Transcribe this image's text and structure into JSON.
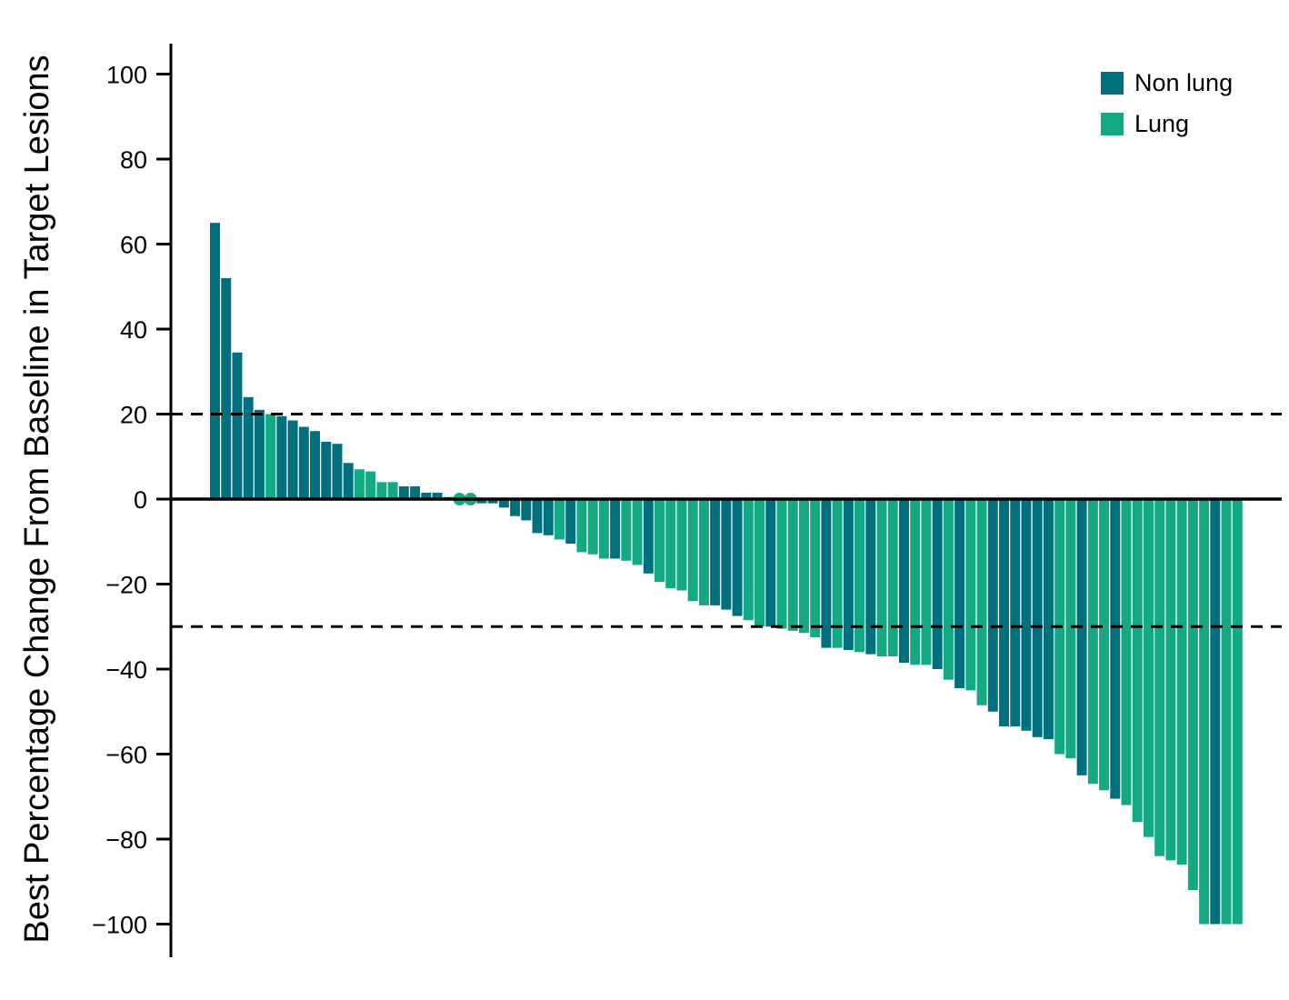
{
  "chart_data": {
    "type": "bar",
    "title": "",
    "xlabel": "",
    "ylabel": "Best Percentage Change From Baseline in Target Lesions",
    "ylim": [
      -107,
      107
    ],
    "yticks": [
      100,
      80,
      60,
      40,
      20,
      0,
      -20,
      -40,
      -60,
      -80,
      -100
    ],
    "ytick_labels": [
      "100",
      "80",
      "60",
      "40",
      "20",
      "0",
      "−20",
      "−40",
      "−60",
      "−80",
      "−100"
    ],
    "reference_lines": [
      20,
      -30
    ],
    "grid": false,
    "legend_position": "top-right",
    "series": [
      {
        "name": "Non lung",
        "color": "#00707f"
      },
      {
        "name": "Lung",
        "color": "#13aa83"
      }
    ],
    "values": [
      65,
      52,
      34.5,
      24,
      21,
      20,
      19.5,
      18.5,
      17,
      16,
      13.5,
      13,
      8.5,
      7,
      6.5,
      4,
      4,
      3,
      3,
      1.5,
      1.5,
      0.5,
      0,
      0,
      -1,
      -1,
      -2,
      -4,
      -5,
      -8,
      -8.5,
      -9.5,
      -10.5,
      -12.5,
      -13,
      -14,
      -14,
      -14.5,
      -15.5,
      -17.5,
      -19.5,
      -21,
      -21.5,
      -24,
      -25,
      -25,
      -26,
      -27.5,
      -28.5,
      -30,
      -30,
      -30.5,
      -31,
      -31.5,
      -32.5,
      -35,
      -35,
      -35.5,
      -36,
      -36.5,
      -37,
      -37,
      -38.5,
      -39,
      -39,
      -40,
      -42.5,
      -44.5,
      -45,
      -48.5,
      -50,
      -53.5,
      -53.5,
      -54.5,
      -56,
      -56.5,
      -60,
      -61,
      -65,
      -67,
      -68.5,
      -70.5,
      -72,
      -76,
      -79.5,
      -84,
      -85,
      -86,
      -92,
      -100,
      -100,
      -100,
      -100
    ],
    "groups": [
      "Non lung",
      "Non lung",
      "Non lung",
      "Non lung",
      "Non lung",
      "Lung",
      "Non lung",
      "Non lung",
      "Non lung",
      "Non lung",
      "Non lung",
      "Non lung",
      "Non lung",
      "Lung",
      "Lung",
      "Lung",
      "Lung",
      "Non lung",
      "Non lung",
      "Non lung",
      "Non lung",
      "Lung",
      "Lung",
      "Lung",
      "Non lung",
      "Non lung",
      "Non lung",
      "Non lung",
      "Non lung",
      "Non lung",
      "Non lung",
      "Lung",
      "Non lung",
      "Lung",
      "Lung",
      "Lung",
      "Non lung",
      "Lung",
      "Lung",
      "Non lung",
      "Lung",
      "Lung",
      "Lung",
      "Lung",
      "Lung",
      "Non lung",
      "Non lung",
      "Non lung",
      "Lung",
      "Lung",
      "Non lung",
      "Lung",
      "Lung",
      "Lung",
      "Lung",
      "Non lung",
      "Lung",
      "Non lung",
      "Lung",
      "Non lung",
      "Lung",
      "Lung",
      "Non lung",
      "Lung",
      "Lung",
      "Non lung",
      "Lung",
      "Non lung",
      "Lung",
      "Lung",
      "Non lung",
      "Non lung",
      "Non lung",
      "Non lung",
      "Non lung",
      "Non lung",
      "Lung",
      "Lung",
      "Non lung",
      "Lung",
      "Lung",
      "Non lung",
      "Lung",
      "Lung",
      "Lung",
      "Lung",
      "Lung",
      "Lung",
      "Lung",
      "Lung",
      "Non lung",
      "Lung",
      "Lung"
    ]
  }
}
